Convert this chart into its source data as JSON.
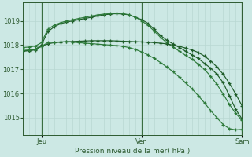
{
  "bg_color": "#cce8e4",
  "grid_color": "#b8d8d2",
  "line_color_dark": "#1e5c28",
  "line_color_mid": "#2d7a3a",
  "xlabel": "Pression niveau de la mer( hPa )",
  "xlabel_color": "#2d5a30",
  "tick_color": "#2d5a30",
  "ylim": [
    1014.3,
    1019.75
  ],
  "yticks": [
    1015,
    1016,
    1017,
    1018,
    1019
  ],
  "xtick_labels": [
    "Jeu",
    "Ven",
    "Sam"
  ],
  "xtick_pos": [
    3,
    19,
    35
  ],
  "vline_pos": [
    3,
    19,
    35
  ],
  "total_points": 36,
  "series_arc1": [
    1017.75,
    1017.78,
    1017.82,
    1018.0,
    1018.55,
    1018.75,
    1018.88,
    1018.95,
    1019.0,
    1019.05,
    1019.1,
    1019.15,
    1019.2,
    1019.25,
    1019.28,
    1019.3,
    1019.28,
    1019.25,
    1019.15,
    1019.05,
    1018.9,
    1018.65,
    1018.4,
    1018.2,
    1018.05,
    1017.9,
    1017.75,
    1017.6,
    1017.45,
    1017.25,
    1017.05,
    1016.8,
    1016.45,
    1015.9,
    1015.35,
    1014.95
  ],
  "series_arc2": [
    1017.9,
    1017.92,
    1017.96,
    1018.1,
    1018.65,
    1018.82,
    1018.92,
    1019.0,
    1019.05,
    1019.1,
    1019.15,
    1019.2,
    1019.25,
    1019.28,
    1019.3,
    1019.32,
    1019.3,
    1019.25,
    1019.15,
    1019.0,
    1018.82,
    1018.58,
    1018.32,
    1018.1,
    1017.92,
    1017.75,
    1017.58,
    1017.42,
    1017.22,
    1017.0,
    1016.72,
    1016.38,
    1015.98,
    1015.55,
    1015.18,
    1014.9
  ],
  "series_flat": [
    1017.75,
    1017.77,
    1017.8,
    1017.95,
    1018.05,
    1018.1,
    1018.12,
    1018.14,
    1018.15,
    1018.16,
    1018.17,
    1018.18,
    1018.18,
    1018.18,
    1018.18,
    1018.17,
    1018.16,
    1018.15,
    1018.14,
    1018.13,
    1018.12,
    1018.1,
    1018.08,
    1018.05,
    1018.0,
    1017.95,
    1017.88,
    1017.8,
    1017.7,
    1017.55,
    1017.35,
    1017.1,
    1016.8,
    1016.42,
    1015.98,
    1015.5
  ],
  "series_diag": [
    1017.78,
    1017.8,
    1017.82,
    1017.95,
    1018.1,
    1018.12,
    1018.13,
    1018.14,
    1018.12,
    1018.1,
    1018.08,
    1018.06,
    1018.04,
    1018.02,
    1018.0,
    1017.98,
    1017.95,
    1017.9,
    1017.82,
    1017.72,
    1017.6,
    1017.45,
    1017.28,
    1017.1,
    1016.9,
    1016.68,
    1016.45,
    1016.2,
    1015.92,
    1015.62,
    1015.3,
    1015.0,
    1014.72,
    1014.55,
    1014.5,
    1014.52
  ]
}
